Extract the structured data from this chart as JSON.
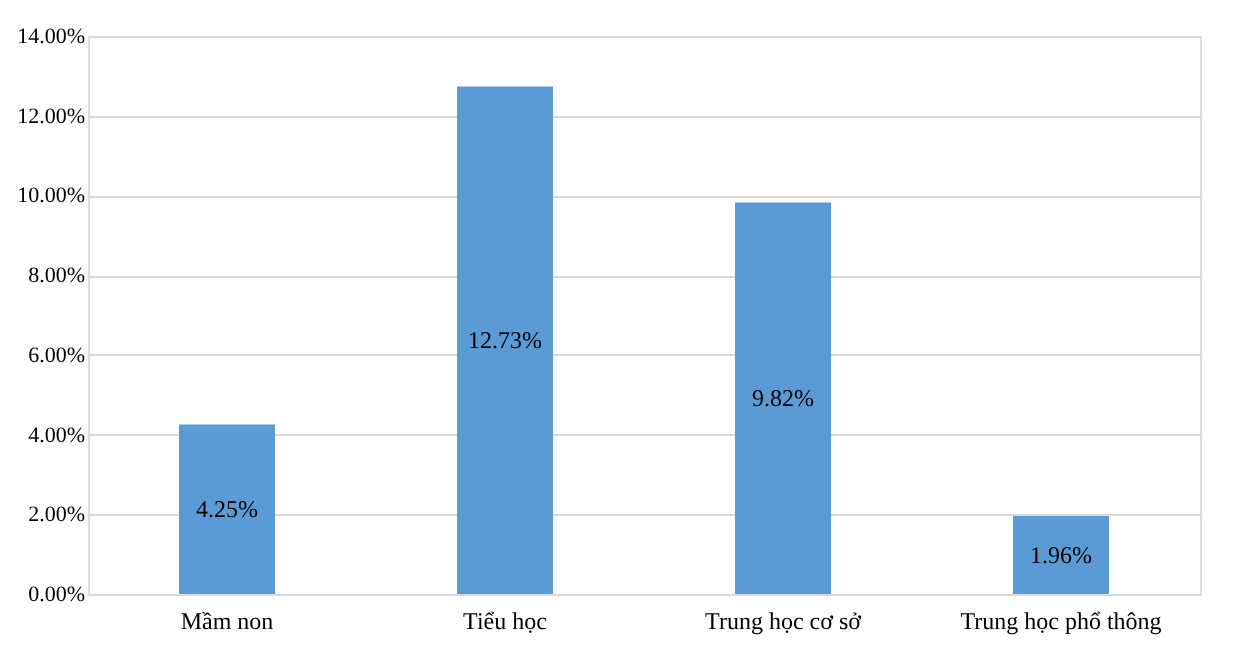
{
  "chart_data": {
    "type": "bar",
    "categories": [
      "Mầm non",
      "Tiểu học",
      "Trung học cơ sở",
      "Trung học phổ thông"
    ],
    "values": [
      4.25,
      12.73,
      9.82,
      1.96
    ],
    "value_labels": [
      "4.25%",
      "12.73%",
      "9.82%",
      "1.96%"
    ],
    "color": "#5b9bd5",
    "ylim": [
      0,
      14
    ],
    "yticks": [
      {
        "value": 0,
        "label": "0.00%"
      },
      {
        "value": 2,
        "label": "2.00%"
      },
      {
        "value": 4,
        "label": "4.00%"
      },
      {
        "value": 6,
        "label": "6.00%"
      },
      {
        "value": 8,
        "label": "8.00%"
      },
      {
        "value": 10,
        "label": "10.00%"
      },
      {
        "value": 12,
        "label": "12.00%"
      },
      {
        "value": 14,
        "label": "14.00%"
      }
    ],
    "grid": "y"
  }
}
